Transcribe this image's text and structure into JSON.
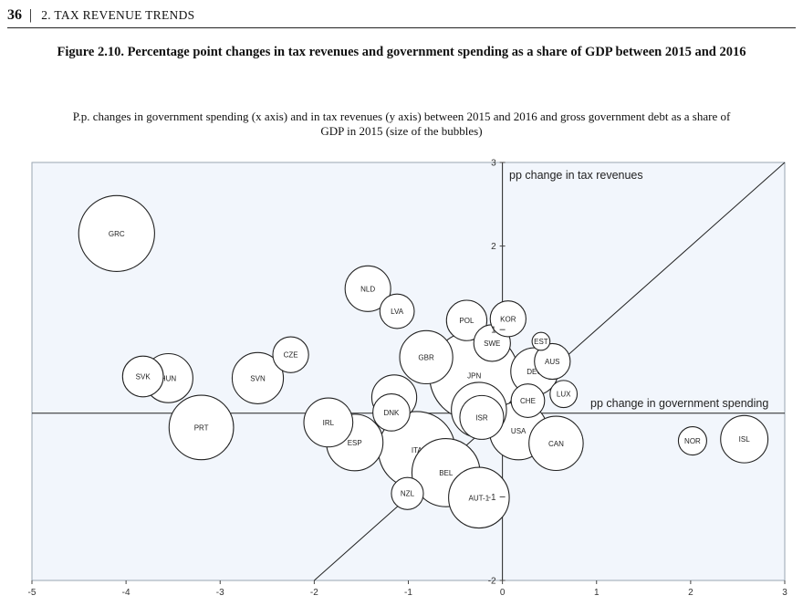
{
  "header": {
    "page_number": "36",
    "separator": "|",
    "section": "2. TAX REVENUE TRENDS"
  },
  "figure": {
    "title": "Figure 2.10. Percentage point changes in tax revenues and government spending as a share of GDP between 2015 and 2016",
    "subtitle": "P.p. changes in government spending (x axis) and in tax revenues (y axis) between 2015 and 2016 and gross government debt as a share of GDP in 2015 (size of the bubbles)"
  },
  "chart_data": {
    "type": "scatter",
    "subtype": "bubble",
    "xlabel": "pp change in government spending",
    "ylabel": "pp change in tax revenues",
    "xlim": [
      -5,
      3
    ],
    "ylim": [
      -2,
      3
    ],
    "x_ticks": [
      "-5",
      "-4",
      "-3",
      "-2",
      "-1",
      "0",
      "1",
      "2",
      "3"
    ],
    "y_ticks": [
      "-2",
      "-1",
      "1",
      "2",
      "3"
    ],
    "diagonal_line": "y = x",
    "points": [
      {
        "label": "GRC",
        "x": -4.1,
        "y": 2.15,
        "size": 180
      },
      {
        "label": "NLD",
        "x": -1.43,
        "y": 1.49,
        "size": 65
      },
      {
        "label": "LVA",
        "x": -1.12,
        "y": 1.22,
        "size": 37
      },
      {
        "label": "POL",
        "x": -0.38,
        "y": 1.11,
        "size": 51
      },
      {
        "label": "KOR",
        "x": 0.06,
        "y": 1.13,
        "size": 40
      },
      {
        "label": "EST",
        "x": 0.41,
        "y": 0.86,
        "size": 10
      },
      {
        "label": "SWE",
        "x": -0.11,
        "y": 0.84,
        "size": 42
      },
      {
        "label": "GBR",
        "x": -0.81,
        "y": 0.67,
        "size": 88
      },
      {
        "label": "JPN",
        "x": -0.3,
        "y": 0.45,
        "size": 250
      },
      {
        "label": "AUS",
        "x": 0.53,
        "y": 0.62,
        "size": 40
      },
      {
        "label": "DEU",
        "x": 0.34,
        "y": 0.5,
        "size": 70
      },
      {
        "label": "CZE",
        "x": -2.25,
        "y": 0.7,
        "size": 40
      },
      {
        "label": "SVK",
        "x": -3.82,
        "y": 0.44,
        "size": 52
      },
      {
        "label": "HUN",
        "x": -3.55,
        "y": 0.42,
        "size": 75
      },
      {
        "label": "SVN",
        "x": -2.6,
        "y": 0.42,
        "size": 82
      },
      {
        "label": "LUX",
        "x": 0.65,
        "y": 0.23,
        "size": 23
      },
      {
        "label": "FIN",
        "x": -1.15,
        "y": 0.19,
        "size": 63
      },
      {
        "label": "CHE",
        "x": 0.27,
        "y": 0.15,
        "size": 35
      },
      {
        "label": "DNK",
        "x": -1.18,
        "y": 0.01,
        "size": 43
      },
      {
        "label": "FRA",
        "x": -0.25,
        "y": 0.04,
        "size": 95
      },
      {
        "label": "ISR",
        "x": -0.22,
        "y": -0.05,
        "size": 60
      },
      {
        "label": "IRL",
        "x": -1.85,
        "y": -0.11,
        "size": 75
      },
      {
        "label": "PRT",
        "x": -3.2,
        "y": -0.17,
        "size": 130
      },
      {
        "label": "USA",
        "x": 0.17,
        "y": -0.21,
        "size": 105
      },
      {
        "label": "ESP",
        "x": -1.57,
        "y": -0.35,
        "size": 100
      },
      {
        "label": "CAN",
        "x": 0.57,
        "y": -0.36,
        "size": 92
      },
      {
        "label": "NOR",
        "x": 2.02,
        "y": -0.33,
        "size": 25
      },
      {
        "label": "ISL",
        "x": 2.57,
        "y": -0.31,
        "size": 70
      },
      {
        "label": "ITA",
        "x": -0.91,
        "y": -0.44,
        "size": 185
      },
      {
        "label": "BEL",
        "x": -0.6,
        "y": -0.71,
        "size": 145
      },
      {
        "label": "NZL",
        "x": -1.01,
        "y": -0.96,
        "size": 32
      },
      {
        "label": "AUT-1",
        "x": -0.25,
        "y": -1.01,
        "size": 115
      }
    ]
  }
}
